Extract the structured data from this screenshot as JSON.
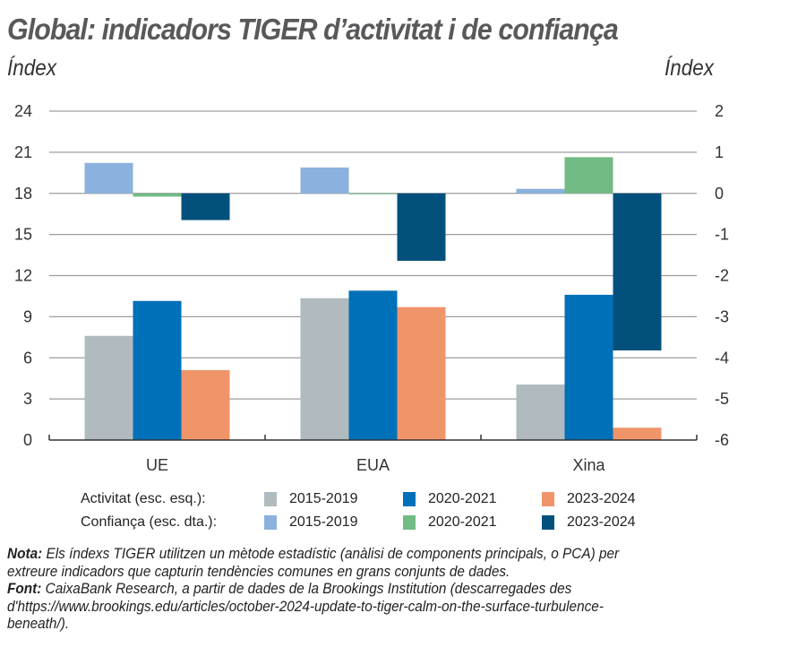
{
  "title": "Global: indicadors TIGER d’activitat i de confiança",
  "left_axis_unit": "Índex",
  "right_axis_unit": "Índex",
  "chart_data": {
    "type": "bar",
    "title": "Global: indicadors TIGER d’activitat i de confiança",
    "xlabel": "",
    "ylabel": "Índex",
    "y2label": "Índex",
    "categories": [
      "UE",
      "EUA",
      "Xina"
    ],
    "left_axis": {
      "ylim": [
        0,
        24
      ],
      "ticks": [
        0,
        3,
        6,
        9,
        12,
        15,
        18,
        21,
        24
      ]
    },
    "right_axis": {
      "ylim": [
        -6,
        2
      ],
      "ticks": [
        -6,
        -5,
        -4,
        -3,
        -2,
        -1,
        0,
        1,
        2
      ]
    },
    "grid": true,
    "legend_position": "bottom",
    "series": [
      {
        "name": "2015-2019",
        "group": "Activitat (esc. esq.):",
        "axis": "left",
        "color": "#b1bbbf",
        "values": [
          7.6,
          10.35,
          4.05
        ]
      },
      {
        "name": "2020-2021",
        "group": "Activitat (esc. esq.):",
        "axis": "left",
        "color": "#0070b8",
        "values": [
          10.15,
          10.9,
          10.6
        ]
      },
      {
        "name": "2023-2024",
        "group": "Activitat (esc. esq.):",
        "axis": "left",
        "color": "#f0956a",
        "values": [
          5.1,
          9.7,
          0.9
        ]
      },
      {
        "name": "2015-2019",
        "group": "Confiança (esc. dta.):",
        "axis": "right",
        "color": "#8bb1de",
        "values": [
          0.74,
          0.63,
          0.11
        ]
      },
      {
        "name": "2020-2021",
        "group": "Confiança (esc. dta.):",
        "axis": "right",
        "color": "#72bb85",
        "values": [
          -0.08,
          -0.02,
          0.88
        ]
      },
      {
        "name": "2023-2024",
        "group": "Confiança (esc. dta.):",
        "axis": "right",
        "color": "#04507d",
        "values": [
          -0.65,
          -1.64,
          -3.82
        ]
      }
    ]
  },
  "legend": {
    "rows": [
      {
        "label": "Activitat (esc. esq.):",
        "items": [
          {
            "label": "2015-2019",
            "color": "#b1bbbf"
          },
          {
            "label": "2020-2021",
            "color": "#0070b8"
          },
          {
            "label": "2023-2024",
            "color": "#f0956a"
          }
        ]
      },
      {
        "label": "Confiança (esc. dta.):",
        "items": [
          {
            "label": "2015-2019",
            "color": "#8bb1de"
          },
          {
            "label": "2020-2021",
            "color": "#72bb85"
          },
          {
            "label": "2023-2024",
            "color": "#04507d"
          }
        ]
      }
    ]
  },
  "notes": {
    "nota_label": "Nota:",
    "nota_text": " Els índexs TIGER utilitzen un mètode estadístic (anàlisi de components principals, o PCA) per extreure indicadors que capturin tendències comunes en grans conjunts de dades.",
    "font_label": "Font:",
    "font_text": " CaixaBank Research, a partir de dades de la Brookings Institution (descarregades des d'https://www.brookings.edu/articles/october-2024-update-to-tiger-calm-on-the-surface-turbulence-beneath/)."
  }
}
